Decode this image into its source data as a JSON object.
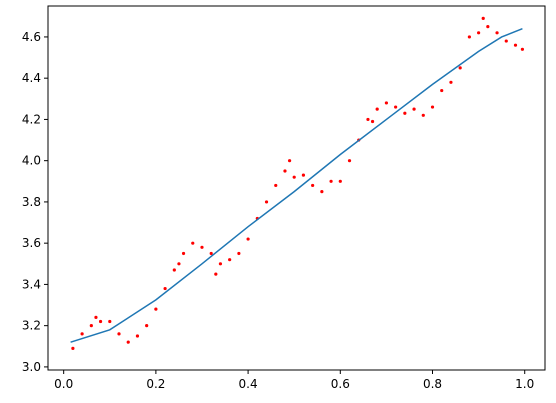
{
  "chart_data": {
    "type": "scatter",
    "xlim": [
      -0.034,
      1.044
    ],
    "ylim": [
      2.985,
      4.75
    ],
    "xticks": [
      {
        "value": 0,
        "label": "0.0"
      },
      0.2,
      0.4,
      0.6,
      0.8,
      {
        "value": 1,
        "label": "1.0"
      }
    ],
    "yticks": [
      {
        "value": 3,
        "label": "3.0"
      },
      3.2,
      3.4,
      3.6,
      3.8,
      {
        "value": 4,
        "label": "4.0"
      },
      4.2,
      4.4,
      4.6
    ],
    "series": [
      {
        "type": "scatter",
        "color": "#ff0000",
        "x": [
          0.02,
          0.04,
          0.06,
          0.08,
          0.1,
          0.12,
          0.14,
          0.16,
          0.18,
          0.2,
          0.22,
          0.24,
          0.26,
          0.28,
          0.3,
          0.32,
          0.34,
          0.36,
          0.38,
          0.4,
          0.42,
          0.44,
          0.46,
          0.48,
          0.5,
          0.52,
          0.54,
          0.56,
          0.58,
          0.6,
          0.62,
          0.64,
          0.66,
          0.68,
          0.7,
          0.72,
          0.74,
          0.76,
          0.78,
          0.8,
          0.82,
          0.84,
          0.86,
          0.88,
          0.9,
          0.92,
          0.94,
          0.96,
          0.98,
          0.07,
          0.25,
          0.49,
          0.67,
          0.91,
          0.995,
          0.33
        ],
        "values": [
          3.09,
          3.16,
          3.2,
          3.22,
          3.22,
          3.16,
          3.12,
          3.15,
          3.2,
          3.28,
          3.38,
          3.47,
          3.55,
          3.6,
          3.58,
          3.55,
          3.5,
          3.52,
          3.55,
          3.62,
          3.72,
          3.8,
          3.88,
          3.95,
          3.92,
          3.93,
          3.88,
          3.85,
          3.9,
          3.9,
          4.0,
          4.1,
          4.2,
          4.25,
          4.28,
          4.26,
          4.23,
          4.25,
          4.22,
          4.26,
          4.34,
          4.38,
          4.45,
          4.6,
          4.62,
          4.65,
          4.62,
          4.58,
          4.56,
          3.24,
          3.5,
          4.0,
          4.19,
          4.69,
          4.54,
          3.45
        ]
      },
      {
        "type": "line",
        "color": "#1f77b4",
        "x": [
          0.015,
          0.1,
          0.2,
          0.3,
          0.4,
          0.5,
          0.6,
          0.7,
          0.8,
          0.9,
          0.95,
          0.995
        ],
        "values": [
          3.12,
          3.18,
          3.325,
          3.5,
          3.68,
          3.85,
          4.03,
          4.2,
          4.37,
          4.53,
          4.6,
          4.64
        ]
      }
    ]
  }
}
